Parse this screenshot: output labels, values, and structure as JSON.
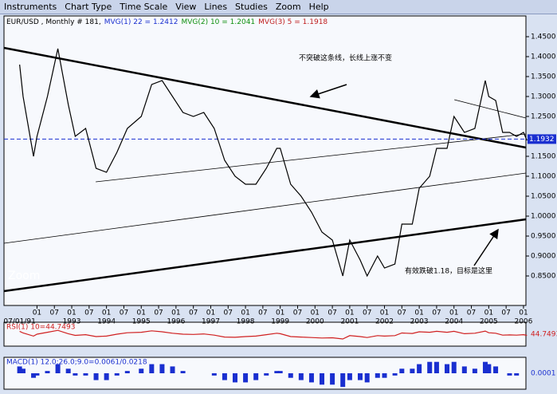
{
  "menu": [
    "Instruments",
    "Chart Type",
    "Time Scale",
    "View",
    "Lines",
    "Studies",
    "Zoom",
    "Help"
  ],
  "chart_data": [
    {
      "type": "line",
      "title": "EUR/USD , Monthly # 181,",
      "moving_averages": [
        {
          "name": "MVG(1) 22 = 1.2412",
          "color": "#1a2fd0"
        },
        {
          "name": "MVG(2) 10 = 1.2041",
          "color": "#109010"
        },
        {
          "name": "MVG(3) 5 = 1.1918",
          "color": "#c02020"
        }
      ],
      "x": [
        1991.5,
        1991.6,
        1991.9,
        1992.0,
        1992.3,
        1992.6,
        1992.9,
        1993.1,
        1993.4,
        1993.7,
        1994.0,
        1994.3,
        1994.6,
        1995.0,
        1995.3,
        1995.6,
        1995.9,
        1996.2,
        1996.5,
        1996.8,
        1997.1,
        1997.4,
        1997.7,
        1998.0,
        1998.3,
        1998.6,
        1998.9,
        1999.0,
        1999.3,
        1999.6,
        1999.9,
        2000.2,
        2000.5,
        2000.8,
        2001.0,
        2001.3,
        2001.5,
        2001.8,
        2002.0,
        2002.3,
        2002.5,
        2002.8,
        2003.0,
        2003.3,
        2003.5,
        2003.8,
        2004.0,
        2004.3,
        2004.6,
        2004.9,
        2005.0,
        2005.2,
        2005.4,
        2005.6,
        2005.8,
        2006.0,
        2006.1
      ],
      "values": [
        1.38,
        1.3,
        1.15,
        1.2,
        1.3,
        1.42,
        1.28,
        1.2,
        1.22,
        1.12,
        1.11,
        1.16,
        1.22,
        1.25,
        1.33,
        1.34,
        1.3,
        1.26,
        1.25,
        1.26,
        1.22,
        1.14,
        1.1,
        1.08,
        1.08,
        1.12,
        1.17,
        1.17,
        1.08,
        1.05,
        1.01,
        0.96,
        0.94,
        0.85,
        0.94,
        0.89,
        0.85,
        0.9,
        0.87,
        0.88,
        0.98,
        0.98,
        1.07,
        1.1,
        1.17,
        1.17,
        1.25,
        1.21,
        1.22,
        1.34,
        1.3,
        1.29,
        1.21,
        1.21,
        1.2,
        1.21,
        1.19
      ],
      "color": "#000000",
      "xlim": [
        1991.05,
        2006.07
      ],
      "ylim": [
        0.776,
        1.502
      ],
      "yticks": [
        {
          "value": 1.45,
          "label": "1.4500"
        },
        {
          "value": 1.4,
          "label": "1.4000"
        },
        {
          "value": 1.35,
          "label": "1.3500"
        },
        {
          "value": 1.3,
          "label": "1.3000"
        },
        {
          "value": 1.25,
          "label": "1.2500"
        },
        {
          "value": 1.15,
          "label": "1.1500"
        },
        {
          "value": 1.1,
          "label": "1.1000"
        },
        {
          "value": 1.05,
          "label": "1.0500"
        },
        {
          "value": 1.0,
          "label": "1.0000"
        },
        {
          "value": 0.95,
          "label": "0.9500"
        },
        {
          "value": 0.9,
          "label": "0.9000"
        },
        {
          "value": 0.85,
          "label": "0.8500"
        }
      ],
      "xticks": [
        {
          "value": 1992.0,
          "label": "01"
        },
        {
          "value": 1992.5,
          "label": "07"
        },
        {
          "value": 1993.0,
          "label": "01"
        },
        {
          "value": 1993.5,
          "label": "07"
        },
        {
          "value": 1994.0,
          "label": "01"
        },
        {
          "value": 1994.5,
          "label": "07"
        },
        {
          "value": 1995.0,
          "label": "01"
        },
        {
          "value": 1995.5,
          "label": "07"
        },
        {
          "value": 1996.0,
          "label": "01"
        },
        {
          "value": 1996.5,
          "label": "07"
        },
        {
          "value": 1997.0,
          "label": "01"
        },
        {
          "value": 1997.5,
          "label": "07"
        },
        {
          "value": 1998.0,
          "label": "01"
        },
        {
          "value": 1998.5,
          "label": "07"
        },
        {
          "value": 1999.0,
          "label": "01"
        },
        {
          "value": 1999.5,
          "label": "07"
        },
        {
          "value": 2000.0,
          "label": "01"
        },
        {
          "value": 2000.5,
          "label": "07"
        },
        {
          "value": 2001.0,
          "label": "01"
        },
        {
          "value": 2001.5,
          "label": "07"
        },
        {
          "value": 2002.0,
          "label": "01"
        },
        {
          "value": 2002.5,
          "label": "07"
        },
        {
          "value": 2003.0,
          "label": "01"
        },
        {
          "value": 2003.5,
          "label": "07"
        },
        {
          "value": 2004.0,
          "label": "01"
        },
        {
          "value": 2004.5,
          "label": "07"
        },
        {
          "value": 2005.0,
          "label": "01"
        },
        {
          "value": 2005.5,
          "label": "07"
        },
        {
          "value": 2006.0,
          "label": "01"
        }
      ],
      "xticks_years": [
        {
          "value": 1991.5,
          "label": "07/01/91"
        },
        1993,
        1994,
        1995,
        1996,
        1997,
        1998,
        1999,
        2000,
        2001,
        2002,
        2003,
        2004,
        2005,
        2006
      ],
      "last_price": {
        "value": 1.1932,
        "label": "1.1932"
      },
      "trendlines_thick": [
        {
          "x": [
            1991.05,
            2006.07
          ],
          "y": [
            1.422,
            1.172
          ]
        },
        {
          "x": [
            1991.05,
            2006.07
          ],
          "y": [
            0.812,
            0.992
          ]
        }
      ],
      "trendlines_thin": [
        {
          "x": [
            1993.69,
            2006.07
          ],
          "y": [
            1.086,
            1.206
          ]
        },
        {
          "x": [
            1991.05,
            2006.07
          ],
          "y": [
            0.932,
            1.108
          ]
        },
        {
          "x": [
            2004.01,
            2006.07
          ],
          "y": [
            1.292,
            1.246
          ]
        }
      ],
      "annotations": [
        "不突破这条线，长线上涨不变",
        "有效跌破1.18，目标是这里"
      ],
      "zoom_label": "Zoom"
    },
    {
      "type": "line",
      "title": "RSI(1) 10=44.7493",
      "color": "#d02020",
      "values": [
        62,
        55,
        42,
        50,
        58,
        66,
        52,
        45,
        48,
        40,
        42,
        50,
        56,
        58,
        64,
        60,
        54,
        50,
        49,
        51,
        46,
        38,
        37,
        40,
        42,
        48,
        54,
        52,
        40,
        38,
        36,
        34,
        35,
        30,
        44,
        40,
        36,
        44,
        42,
        44,
        55,
        53,
        60,
        58,
        62,
        58,
        62,
        52,
        54,
        63,
        56,
        54,
        46,
        47,
        46,
        48,
        45
      ],
      "ylim": [
        0,
        100
      ],
      "last_label": "44.7493"
    },
    {
      "type": "bar",
      "title": "MACD(1) 12.0;26.0;9.0=0.0061/0.0218",
      "color": "#1a2fd0",
      "values": [
        0.03,
        0.02,
        -0.02,
        -0.01,
        0.01,
        0.04,
        0.02,
        -0.01,
        -0.01,
        -0.03,
        -0.03,
        -0.01,
        0.01,
        0.02,
        0.04,
        0.04,
        0.03,
        0.01,
        0.0,
        0.0,
        -0.01,
        -0.03,
        -0.04,
        -0.04,
        -0.03,
        -0.01,
        0.01,
        0.01,
        -0.02,
        -0.03,
        -0.04,
        -0.05,
        -0.05,
        -0.06,
        -0.03,
        -0.03,
        -0.04,
        -0.02,
        -0.02,
        -0.01,
        0.02,
        0.02,
        0.04,
        0.05,
        0.05,
        0.04,
        0.05,
        0.03,
        0.02,
        0.05,
        0.04,
        0.03,
        0.0,
        -0.01,
        -0.01,
        0.0,
        0.0
      ],
      "ylim": [
        -0.07,
        0.07
      ],
      "last_label": "0.0001"
    }
  ]
}
